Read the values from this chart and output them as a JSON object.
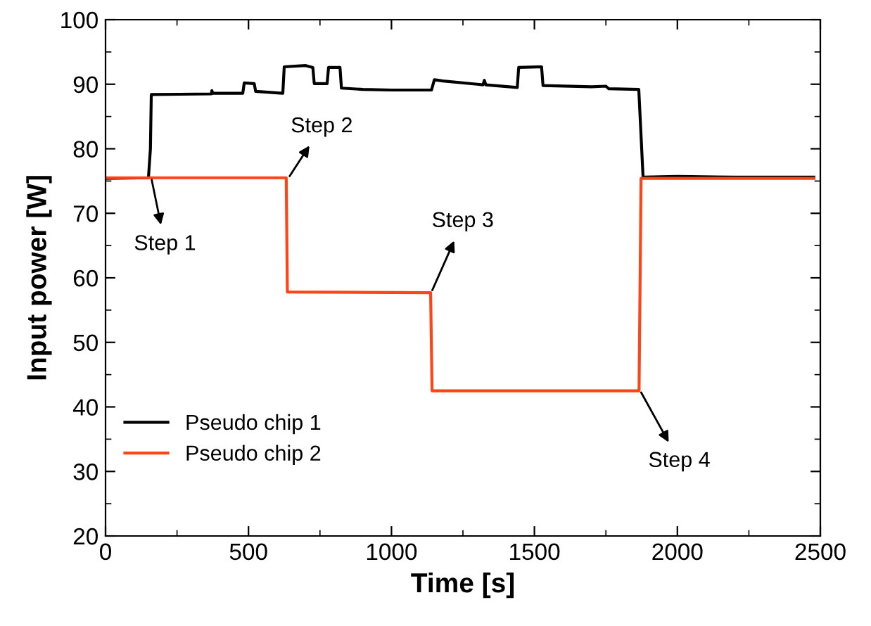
{
  "chart_data": {
    "type": "line",
    "xlabel": "Time [s]",
    "ylabel": "Input power [W]",
    "xlim": [
      0,
      2500
    ],
    "ylim": [
      20,
      100
    ],
    "xticks": [
      0,
      500,
      1000,
      1500,
      2000,
      2500
    ],
    "yticks": [
      20,
      30,
      40,
      50,
      60,
      70,
      80,
      90,
      100
    ],
    "grid": false,
    "legend": "bottom left",
    "marker": "none",
    "line_style": "solid",
    "series": [
      {
        "name": "Pseudo chip 1",
        "color": "#000000",
        "x": [
          0,
          150,
          157,
          160,
          370,
          372,
          375,
          480,
          485,
          520,
          525,
          620,
          625,
          700,
          725,
          730,
          775,
          780,
          820,
          825,
          900,
          1000,
          1140,
          1150,
          1180,
          1300,
          1320,
          1325,
          1330,
          1440,
          1445,
          1525,
          1530,
          1700,
          1750,
          1760,
          1865,
          1880,
          2000,
          2200,
          2477
        ],
        "values": [
          75.4,
          75.5,
          80,
          88.4,
          88.5,
          89,
          88.6,
          88.6,
          90.2,
          90.1,
          88.9,
          88.6,
          92.7,
          92.9,
          92.6,
          90.1,
          90.1,
          92.6,
          92.6,
          89.4,
          89.2,
          89.1,
          89.1,
          90.7,
          90.5,
          90.0,
          89.9,
          90.6,
          89.9,
          89.5,
          92.6,
          92.7,
          89.8,
          89.6,
          89.7,
          89.3,
          89.2,
          75.6,
          75.7,
          75.6,
          75.6
        ]
      },
      {
        "name": "Pseudo chip 2",
        "color": "#ff4417",
        "x": [
          0,
          632,
          636,
          1137,
          1142,
          1866,
          1873,
          2477
        ],
        "values": [
          75.5,
          75.5,
          57.8,
          57.7,
          42.5,
          42.5,
          75.4,
          75.4
        ]
      }
    ],
    "annotations": [
      {
        "text": "Step 1",
        "x": 160,
        "y": 75.5
      },
      {
        "text": "Step 2",
        "x": 640,
        "y": 75.5
      },
      {
        "text": "Step 3",
        "x": 1140,
        "y": 57.8
      },
      {
        "text": "Step 4",
        "x": 1870,
        "y": 42.5
      }
    ]
  }
}
